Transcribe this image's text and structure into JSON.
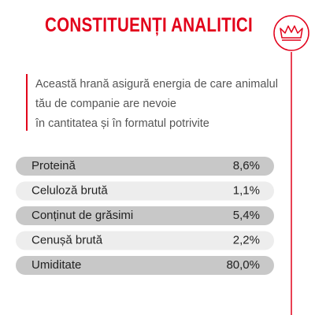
{
  "header": {
    "title": "CONSTITUENȚI ANALITICI"
  },
  "description": [
    "Această hrană asigură energia de care animalul",
    "tău de companie are nevoie",
    "în cantitatea și în formatul potrivite"
  ],
  "table": {
    "rows": [
      [
        "Proteină",
        "8,6%"
      ],
      [
        "Celuloză brută",
        "1,1%"
      ],
      [
        "Conținut de grăsimi",
        "5,4%"
      ],
      [
        "Cenușă brută",
        "2,2%"
      ],
      [
        "Umiditate",
        "80,0%"
      ]
    ]
  }
}
